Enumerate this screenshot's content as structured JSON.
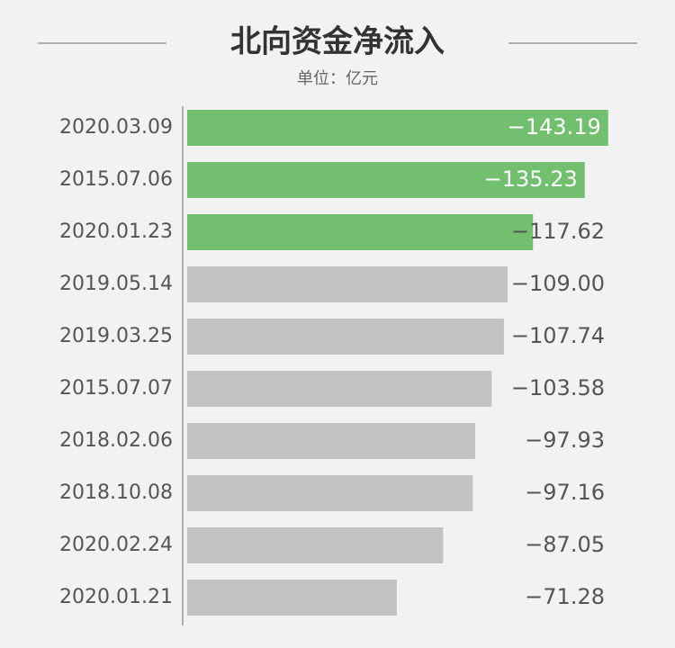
{
  "chart_data": {
    "type": "hbar",
    "title": "北向资金净流入",
    "subtitle": "单位：亿元",
    "categories": [
      "2020.03.09",
      "2015.07.06",
      "2020.01.23",
      "2019.05.14",
      "2019.03.25",
      "2015.07.07",
      "2018.02.06",
      "2018.10.08",
      "2020.02.24",
      "2020.01.21"
    ],
    "values": [
      -143.19,
      -135.23,
      -117.62,
      -109.0,
      -107.74,
      -103.58,
      -97.93,
      -97.16,
      -87.05,
      -71.28
    ],
    "value_labels": [
      "−143.19",
      "−135.23",
      "−117.62",
      "−109.00",
      "−107.74",
      "−103.58",
      "−97.93",
      "−97.16",
      "−87.05",
      "−71.28"
    ],
    "colors": [
      "#72bf6f",
      "#72bf6f",
      "#72bf6f",
      "#c2c2c2",
      "#c2c2c2",
      "#c2c2c2",
      "#c2c2c2",
      "#c2c2c2",
      "#c2c2c2",
      "#c2c2c2"
    ],
    "xlim": [
      0,
      -150
    ]
  }
}
